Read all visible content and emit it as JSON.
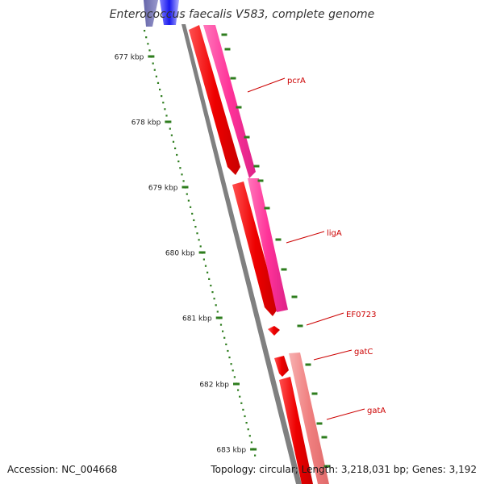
{
  "title": "Enterococcus faecalis V583, complete genome",
  "accession": {
    "label": "Accession:",
    "value": "NC_004668"
  },
  "topology": {
    "label": "Topology:",
    "value": "circular",
    "length_label": "Length:",
    "length_value": "3,218,031 bp",
    "genes_label": "Genes:",
    "genes_value": "3,192"
  },
  "ticks": [
    {
      "label": "677 kbp"
    },
    {
      "label": "678 kbp"
    },
    {
      "label": "679 kbp"
    },
    {
      "label": "680 kbp"
    },
    {
      "label": "681 kbp"
    },
    {
      "label": "682 kbp"
    },
    {
      "label": "683 kbp"
    }
  ],
  "genes": [
    {
      "name": "pcrA"
    },
    {
      "name": "ligA"
    },
    {
      "name": "EF0723"
    },
    {
      "name": "gatC"
    },
    {
      "name": "gatA"
    }
  ],
  "colors": {
    "backbone": "#808080",
    "cds_red": "#ee0000",
    "cds_magenta": "#ff3399",
    "cds_salmon": "#f08080",
    "cds_blue": "#1a1aee",
    "cds_navy": "#5555aa",
    "tick": "#2e7d1e",
    "label": "#cc0000"
  }
}
